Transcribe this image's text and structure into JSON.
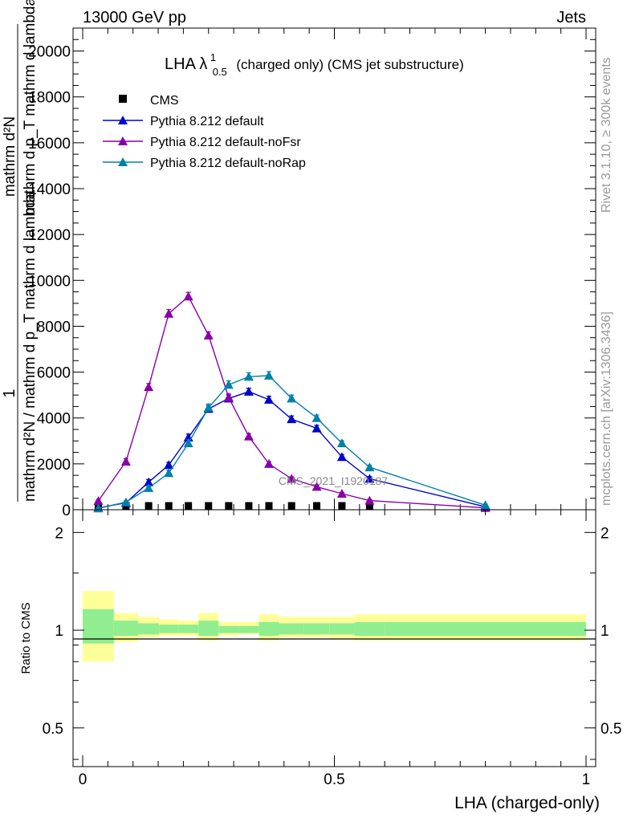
{
  "header": {
    "left": "13000 GeV pp",
    "right": "Jets",
    "side_rivet": "Rivet 3.1.10, ≥ 300k events",
    "side_mcplots": "mcplots.cern.ch [arXiv:1306.3436]"
  },
  "chart_data": [
    {
      "type": "line",
      "title_main": "LHA λ",
      "title_sup": "1",
      "title_sub": "0.5",
      "title_rest": "(charged only) (CMS jet substructure)",
      "xlabel": "",
      "ylabel_top": "1",
      "ylabel_num": "mathrm d²N",
      "ylabel_den": "mathrm d²N / mathrm d p_T mathrm d lambda",
      "ylabel_overlap": "mathrm d p_T mathrm d lambda",
      "watermark": "CMS_2021_I1920187",
      "xlim": [
        0,
        1
      ],
      "ylim": [
        0,
        21000
      ],
      "yticks": [
        0,
        2000,
        4000,
        6000,
        8000,
        10000,
        12000,
        14000,
        16000,
        18000,
        20000
      ],
      "ytick_labels": [
        "0",
        "2000",
        "4000",
        "6000",
        "8000",
        "10000",
        "12000",
        "14000",
        "16000",
        "18000",
        "20000"
      ],
      "legend": [
        "CMS",
        "Pythia 8.212 default",
        "Pythia 8.212 default-noFsr",
        "Pythia 8.212 default-noRap"
      ],
      "series": [
        {
          "name": "CMS",
          "color": "#000000",
          "marker": "square",
          "x": [
            0.031,
            0.086,
            0.131,
            0.171,
            0.21,
            0.25,
            0.29,
            0.33,
            0.37,
            0.415,
            0.465,
            0.515,
            0.57
          ],
          "y": [
            30,
            40,
            40,
            40,
            40,
            40,
            40,
            40,
            40,
            40,
            40,
            40,
            40
          ]
        },
        {
          "name": "Pythia 8.212 default",
          "color": "#0000cc",
          "marker": "triangle",
          "x": [
            0.031,
            0.086,
            0.131,
            0.171,
            0.21,
            0.25,
            0.29,
            0.33,
            0.37,
            0.415,
            0.465,
            0.515,
            0.57,
            0.8
          ],
          "y": [
            80,
            300,
            1200,
            1950,
            3150,
            4400,
            4850,
            5150,
            4800,
            3950,
            3550,
            2300,
            1350,
            130
          ],
          "err": [
            40,
            60,
            120,
            120,
            150,
            150,
            150,
            150,
            150,
            140,
            130,
            110,
            90,
            30
          ]
        },
        {
          "name": "Pythia 8.212 default-noFsr",
          "color": "#8800aa",
          "marker": "triangle",
          "x": [
            0.031,
            0.086,
            0.131,
            0.171,
            0.21,
            0.25,
            0.29,
            0.33,
            0.37,
            0.415,
            0.465,
            0.515,
            0.57,
            0.8
          ],
          "y": [
            380,
            2100,
            5350,
            8550,
            9300,
            7600,
            4900,
            3200,
            2000,
            1350,
            1000,
            700,
            400,
            80
          ],
          "err": [
            60,
            120,
            150,
            180,
            180,
            160,
            150,
            120,
            100,
            80,
            60,
            50,
            40,
            20
          ]
        },
        {
          "name": "Pythia 8.212 default-noRap",
          "color": "#0080aa",
          "marker": "triangle",
          "x": [
            0.031,
            0.086,
            0.131,
            0.171,
            0.21,
            0.25,
            0.29,
            0.33,
            0.37,
            0.415,
            0.465,
            0.515,
            0.57,
            0.8
          ],
          "y": [
            60,
            330,
            950,
            1600,
            2900,
            4450,
            5450,
            5800,
            5850,
            4850,
            4000,
            2900,
            1850,
            200
          ],
          "err": [
            30,
            60,
            100,
            120,
            150,
            160,
            170,
            170,
            170,
            150,
            130,
            110,
            90,
            30
          ]
        }
      ]
    },
    {
      "type": "area",
      "ylabel": "Ratio to CMS",
      "xlabel": "LHA (charged-only)",
      "xlim": [
        0,
        1
      ],
      "ylim": [
        0.38,
        2.35
      ],
      "xticks": [
        0,
        0.5,
        1
      ],
      "xtick_labels": [
        "0",
        "0.5",
        "1"
      ],
      "ytick_labels_major": [
        "0.5",
        "1",
        "2"
      ],
      "bins": [
        0,
        0.062,
        0.11,
        0.152,
        0.19,
        0.23,
        0.27,
        0.31,
        0.35,
        0.39,
        0.44,
        0.49,
        0.54,
        0.6,
        1.0
      ],
      "outer_band": [
        [
          0.8,
          1.32
        ],
        [
          0.92,
          1.13
        ],
        [
          0.95,
          1.1
        ],
        [
          0.96,
          1.08
        ],
        [
          0.96,
          1.07
        ],
        [
          0.93,
          1.13
        ],
        [
          0.96,
          1.06
        ],
        [
          0.97,
          1.06
        ],
        [
          0.93,
          1.12
        ],
        [
          0.95,
          1.1
        ],
        [
          0.95,
          1.1
        ],
        [
          0.94,
          1.1
        ],
        [
          0.93,
          1.12
        ],
        [
          0.93,
          1.12
        ]
      ],
      "inner_band": [
        [
          0.91,
          1.16
        ],
        [
          0.96,
          1.07
        ],
        [
          0.97,
          1.05
        ],
        [
          0.98,
          1.04
        ],
        [
          0.98,
          1.04
        ],
        [
          0.96,
          1.07
        ],
        [
          0.98,
          1.03
        ],
        [
          0.98,
          1.03
        ],
        [
          0.96,
          1.06
        ],
        [
          0.97,
          1.05
        ],
        [
          0.97,
          1.05
        ],
        [
          0.97,
          1.05
        ],
        [
          0.96,
          1.06
        ],
        [
          0.96,
          1.06
        ]
      ],
      "colors": {
        "outer": "#ffff99",
        "inner": "#90ee90"
      }
    }
  ]
}
